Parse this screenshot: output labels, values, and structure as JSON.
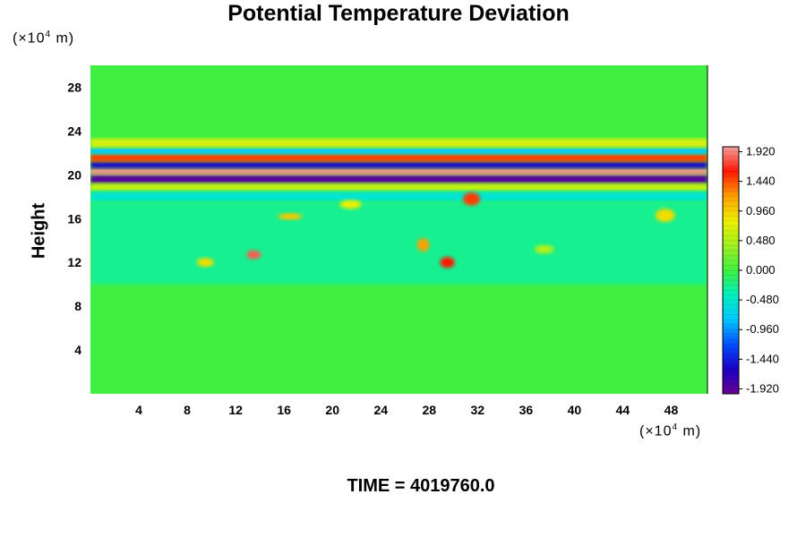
{
  "chart_data": {
    "type": "heatmap",
    "title": "Potential Temperature Deviation",
    "ylabel": "Height",
    "x_unit_prefix": "(×10",
    "x_unit_exp": "4",
    "x_unit_suffix": " m)",
    "y_unit_prefix": "(×10",
    "y_unit_exp": "4",
    "y_unit_suffix": " m)",
    "xlim": [
      0,
      51
    ],
    "ylim": [
      0,
      30
    ],
    "x_ticks": [
      4,
      8,
      12,
      16,
      20,
      24,
      28,
      32,
      36,
      40,
      44,
      48
    ],
    "y_ticks": [
      4,
      8,
      12,
      16,
      20,
      24,
      28
    ],
    "colorbar": {
      "min": -2.0,
      "max": 2.0,
      "tick_values": [
        1.92,
        1.44,
        0.96,
        0.48,
        0.0,
        -0.48,
        -0.96,
        -1.44,
        -1.92
      ],
      "tick_labels": [
        "1.920",
        "1.440",
        "0.960",
        "0.480",
        "0.000",
        "-0.480",
        "-0.960",
        "-1.440",
        "-1.920"
      ],
      "stops": [
        {
          "value": -2.0,
          "color": "#6a0090"
        },
        {
          "value": -1.6,
          "color": "#1a00c8"
        },
        {
          "value": -1.2,
          "color": "#0050ff"
        },
        {
          "value": -0.8,
          "color": "#00c8ff"
        },
        {
          "value": -0.4,
          "color": "#00f0c0"
        },
        {
          "value": 0.0,
          "color": "#40f040"
        },
        {
          "value": 0.4,
          "color": "#a0f020"
        },
        {
          "value": 0.8,
          "color": "#f0f000"
        },
        {
          "value": 1.2,
          "color": "#ffa000"
        },
        {
          "value": 1.6,
          "color": "#ff1800"
        },
        {
          "value": 2.0,
          "color": "#f5a0a0"
        }
      ]
    },
    "background_value": 0.0,
    "regions": [
      {
        "type": "band",
        "x": [
          0,
          51
        ],
        "y": [
          19.2,
          20.0
        ],
        "value": -1.9
      },
      {
        "type": "band",
        "x": [
          0,
          51
        ],
        "y": [
          20.0,
          20.6
        ],
        "value": 1.95
      },
      {
        "type": "band",
        "x": [
          0,
          51
        ],
        "y": [
          20.6,
          21.2
        ],
        "value": -1.6
      },
      {
        "type": "band",
        "x": [
          0,
          51
        ],
        "y": [
          21.2,
          21.9
        ],
        "value": 1.5
      },
      {
        "type": "band",
        "x": [
          0,
          51
        ],
        "y": [
          21.9,
          22.5
        ],
        "value": -0.8
      },
      {
        "type": "band",
        "x": [
          0,
          51
        ],
        "y": [
          22.5,
          23.3
        ],
        "value": 0.7
      },
      {
        "type": "band",
        "x": [
          0,
          51
        ],
        "y": [
          18.5,
          19.2
        ],
        "value": 0.6
      },
      {
        "type": "band",
        "x": [
          0,
          51
        ],
        "y": [
          17.5,
          18.5
        ],
        "value": -0.5
      },
      {
        "type": "band",
        "x": [
          0,
          51
        ],
        "y": [
          10.0,
          17.5
        ],
        "value": -0.25
      },
      {
        "type": "blob",
        "x": 13.5,
        "y": 12.7,
        "rx": 0.6,
        "ry": 0.4,
        "value": 1.8
      },
      {
        "type": "blob",
        "x": 29.5,
        "y": 12.0,
        "rx": 0.6,
        "ry": 0.5,
        "value": 1.6
      },
      {
        "type": "blob",
        "x": 27.5,
        "y": 13.6,
        "rx": 0.5,
        "ry": 0.6,
        "value": 1.2
      },
      {
        "type": "blob",
        "x": 31.5,
        "y": 17.8,
        "rx": 0.7,
        "ry": 0.6,
        "value": 1.5
      },
      {
        "type": "blob",
        "x": 16.5,
        "y": 16.2,
        "rx": 1.0,
        "ry": 0.3,
        "value": 1.0
      },
      {
        "type": "blob",
        "x": 47.5,
        "y": 16.3,
        "rx": 0.8,
        "ry": 0.6,
        "value": 0.9
      },
      {
        "type": "blob",
        "x": 9.5,
        "y": 12.0,
        "rx": 0.7,
        "ry": 0.4,
        "value": 0.9
      },
      {
        "type": "blob",
        "x": 21.5,
        "y": 17.3,
        "rx": 0.9,
        "ry": 0.4,
        "value": 0.8
      },
      {
        "type": "blob",
        "x": 37.5,
        "y": 13.2,
        "rx": 0.8,
        "ry": 0.4,
        "value": 0.5
      }
    ]
  },
  "time_label": "TIME = 4019760.0"
}
